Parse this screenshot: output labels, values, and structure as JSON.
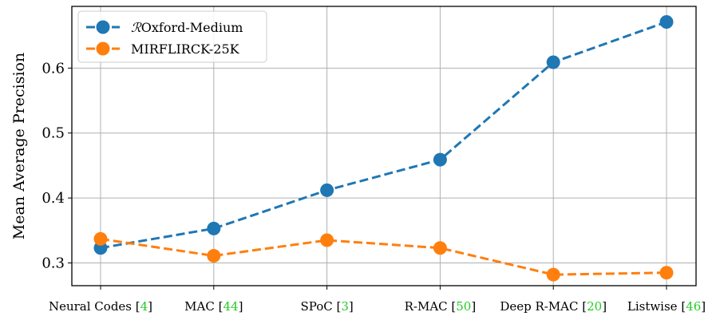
{
  "chart_data": {
    "type": "line",
    "title": "",
    "xlabel": "",
    "ylabel": "Mean Average Precision",
    "ylim": [
      0.265,
      0.695
    ],
    "yticks": [
      "0.3",
      "0.4",
      "0.5",
      "0.6"
    ],
    "grid": true,
    "legend_position": "top-left",
    "categories": [
      {
        "name": "Neural Codes",
        "ref": "4"
      },
      {
        "name": "MAC",
        "ref": "44"
      },
      {
        "name": "SPoC",
        "ref": "3"
      },
      {
        "name": "R-MAC",
        "ref": "50"
      },
      {
        "name": "Deep R-MAC",
        "ref": "20"
      },
      {
        "name": "Listwise",
        "ref": "46"
      }
    ],
    "series": [
      {
        "name_prefix": "ℛ",
        "name": "Oxford-Medium",
        "color": "#1f77b4",
        "values": [
          0.323,
          0.353,
          0.412,
          0.459,
          0.609,
          0.671
        ]
      },
      {
        "name_prefix": "",
        "name": "MIRFLIRCK-25K",
        "color": "#ff7f0e",
        "values": [
          0.337,
          0.311,
          0.335,
          0.323,
          0.282,
          0.285
        ]
      }
    ]
  }
}
